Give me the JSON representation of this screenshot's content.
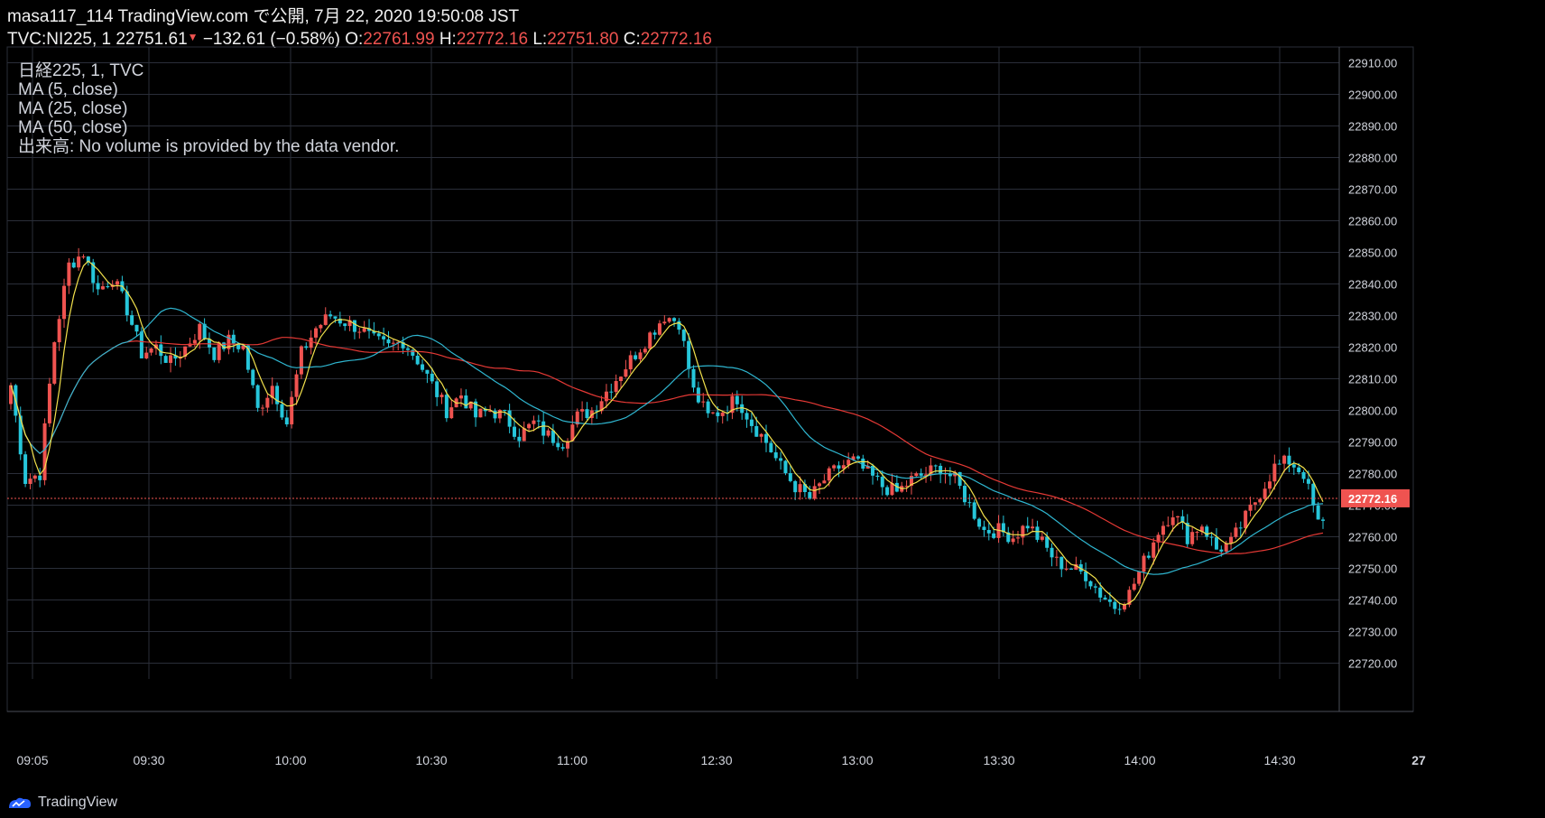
{
  "header": {
    "line1": "masa117_114 TradingView.com で公開, 7月 22, 2020 19:50:08 JST",
    "symbol": "TVC:NI225, 1",
    "last": "22751.61",
    "change": "−132.61 (−0.58%)",
    "o_label": "O:",
    "o_val": "22761.99",
    "h_label": "H:",
    "h_val": "22772.16",
    "l_label": "L:",
    "l_val": "22751.80",
    "c_label": "C:",
    "c_val": "22772.16"
  },
  "legend": {
    "series": "日経225, 1, TVC",
    "ma5": "MA (5, close)",
    "ma25": "MA (25, close)",
    "ma50": "MA (50, close)",
    "volume": "出来高: No volume is provided by the data vendor."
  },
  "brand": "TradingView",
  "colors": {
    "up": "#ef5350",
    "down": "#26c6da",
    "ma5": "#f2e14c",
    "ma25": "#2fb6d0",
    "ma50": "#e53935",
    "grid": "#2a2e39",
    "price_tag": "#ef5350"
  },
  "chart_data": {
    "type": "candlestick",
    "ylim": [
      22715,
      22915
    ],
    "y_ticks": [
      22720,
      22730,
      22740,
      22750,
      22760,
      22770,
      22780,
      22790,
      22800,
      22810,
      22820,
      22830,
      22840,
      22850,
      22860,
      22870,
      22880,
      22890,
      22900,
      22910
    ],
    "y_tick_labels": [
      "22720.00",
      "22730.00",
      "22740.00",
      "22750.00",
      "22760.00",
      "22770.00",
      "22780.00",
      "22790.00",
      "22800.00",
      "22810.00",
      "22820.00",
      "22830.00",
      "22840.00",
      "22850.00",
      "22860.00",
      "22870.00",
      "22880.00",
      "22890.00",
      "22900.00",
      "22910.00"
    ],
    "x_ticks": [
      "09:05",
      "09:30",
      "10:00",
      "10:30",
      "11:00",
      "12:30",
      "13:00",
      "13:30",
      "14:00",
      "14:30",
      "27"
    ],
    "current_price": 22772.16,
    "current_label": "22772.16",
    "close_path": [
      [
        0,
        22808
      ],
      [
        3,
        22778
      ],
      [
        6,
        22780
      ],
      [
        9,
        22822
      ],
      [
        12,
        22846
      ],
      [
        15,
        22850
      ],
      [
        18,
        22838
      ],
      [
        21,
        22842
      ],
      [
        24,
        22832
      ],
      [
        27,
        22818
      ],
      [
        30,
        22820
      ],
      [
        33,
        22815
      ],
      [
        36,
        22820
      ],
      [
        39,
        22826
      ],
      [
        42,
        22818
      ],
      [
        45,
        22822
      ],
      [
        48,
        22820
      ],
      [
        51,
        22800
      ],
      [
        54,
        22808
      ],
      [
        57,
        22796
      ],
      [
        60,
        22818
      ],
      [
        63,
        22826
      ],
      [
        66,
        22830
      ],
      [
        69,
        22828
      ],
      [
        72,
        22826
      ],
      [
        75,
        22822
      ],
      [
        78,
        22820
      ],
      [
        81,
        22822
      ],
      [
        84,
        22816
      ],
      [
        87,
        22808
      ],
      [
        90,
        22800
      ],
      [
        93,
        22805
      ],
      [
        96,
        22798
      ],
      [
        99,
        22800
      ],
      [
        102,
        22798
      ],
      [
        105,
        22792
      ],
      [
        108,
        22796
      ],
      [
        111,
        22792
      ],
      [
        114,
        22790
      ],
      [
        117,
        22798
      ],
      [
        120,
        22800
      ],
      [
        123,
        22806
      ],
      [
        126,
        22812
      ],
      [
        129,
        22818
      ],
      [
        132,
        22824
      ],
      [
        135,
        22830
      ],
      [
        138,
        22828
      ],
      [
        141,
        22806
      ],
      [
        144,
        22798
      ],
      [
        147,
        22800
      ],
      [
        150,
        22804
      ],
      [
        153,
        22796
      ],
      [
        156,
        22790
      ],
      [
        159,
        22782
      ],
      [
        162,
        22776
      ],
      [
        165,
        22772
      ],
      [
        168,
        22778
      ],
      [
        171,
        22782
      ],
      [
        174,
        22784
      ],
      [
        177,
        22780
      ],
      [
        180,
        22776
      ],
      [
        183,
        22774
      ],
      [
        186,
        22778
      ],
      [
        189,
        22780
      ],
      [
        192,
        22782
      ],
      [
        195,
        22778
      ],
      [
        198,
        22770
      ],
      [
        201,
        22762
      ],
      [
        204,
        22762
      ],
      [
        207,
        22760
      ],
      [
        210,
        22764
      ],
      [
        213,
        22758
      ],
      [
        216,
        22752
      ],
      [
        219,
        22750
      ],
      [
        222,
        22748
      ],
      [
        225,
        22742
      ],
      [
        228,
        22738
      ],
      [
        231,
        22742
      ],
      [
        234,
        22752
      ],
      [
        237,
        22762
      ],
      [
        240,
        22768
      ],
      [
        243,
        22760
      ],
      [
        246,
        22764
      ],
      [
        249,
        22756
      ],
      [
        252,
        22758
      ],
      [
        255,
        22766
      ],
      [
        258,
        22774
      ],
      [
        261,
        22782
      ],
      [
        264,
        22784
      ],
      [
        267,
        22780
      ],
      [
        270,
        22764
      ]
    ]
  }
}
